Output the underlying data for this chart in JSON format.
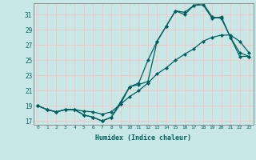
{
  "xlabel": "Humidex (Indice chaleur)",
  "bg_color": "#c8e8e8",
  "grid_color": "#f0c8c8",
  "line_color": "#006060",
  "xlim": [
    -0.5,
    23.5
  ],
  "ylim": [
    16.5,
    32.5
  ],
  "yticks": [
    17,
    19,
    21,
    23,
    25,
    27,
    29,
    31
  ],
  "xticks": [
    0,
    1,
    2,
    3,
    4,
    5,
    6,
    7,
    8,
    9,
    10,
    11,
    12,
    13,
    14,
    15,
    16,
    17,
    18,
    19,
    20,
    21,
    22,
    23
  ],
  "line1_x": [
    0,
    1,
    2,
    3,
    4,
    5,
    6,
    7,
    8,
    9,
    10,
    11,
    12,
    13,
    14,
    15,
    16,
    17,
    18,
    19,
    20,
    21,
    22,
    23
  ],
  "line1_y": [
    19.0,
    18.5,
    18.2,
    18.5,
    18.5,
    17.8,
    17.5,
    17.0,
    17.5,
    19.5,
    21.5,
    22.0,
    25.0,
    27.5,
    29.5,
    31.5,
    31.0,
    32.2,
    32.3,
    30.5,
    30.7,
    28.0,
    25.5,
    25.5
  ],
  "line2_x": [
    0,
    1,
    2,
    3,
    4,
    5,
    6,
    7,
    8,
    9,
    10,
    11,
    12,
    13,
    14,
    15,
    16,
    17,
    18,
    19,
    20,
    21,
    22,
    23
  ],
  "line2_y": [
    19.0,
    18.5,
    18.2,
    18.5,
    18.5,
    17.8,
    17.5,
    17.0,
    17.5,
    19.2,
    21.5,
    21.8,
    22.2,
    27.5,
    29.5,
    31.5,
    31.3,
    32.2,
    32.5,
    30.7,
    30.5,
    28.0,
    26.0,
    25.5
  ],
  "line3_x": [
    0,
    1,
    2,
    3,
    4,
    5,
    6,
    7,
    8,
    9,
    10,
    11,
    12,
    13,
    14,
    15,
    16,
    17,
    18,
    19,
    20,
    21,
    22,
    23
  ],
  "line3_y": [
    19.0,
    18.5,
    18.2,
    18.5,
    18.5,
    18.3,
    18.2,
    17.9,
    18.2,
    19.2,
    20.2,
    21.0,
    22.0,
    23.2,
    24.0,
    25.0,
    25.8,
    26.5,
    27.5,
    28.0,
    28.3,
    28.3,
    27.5,
    26.0
  ]
}
